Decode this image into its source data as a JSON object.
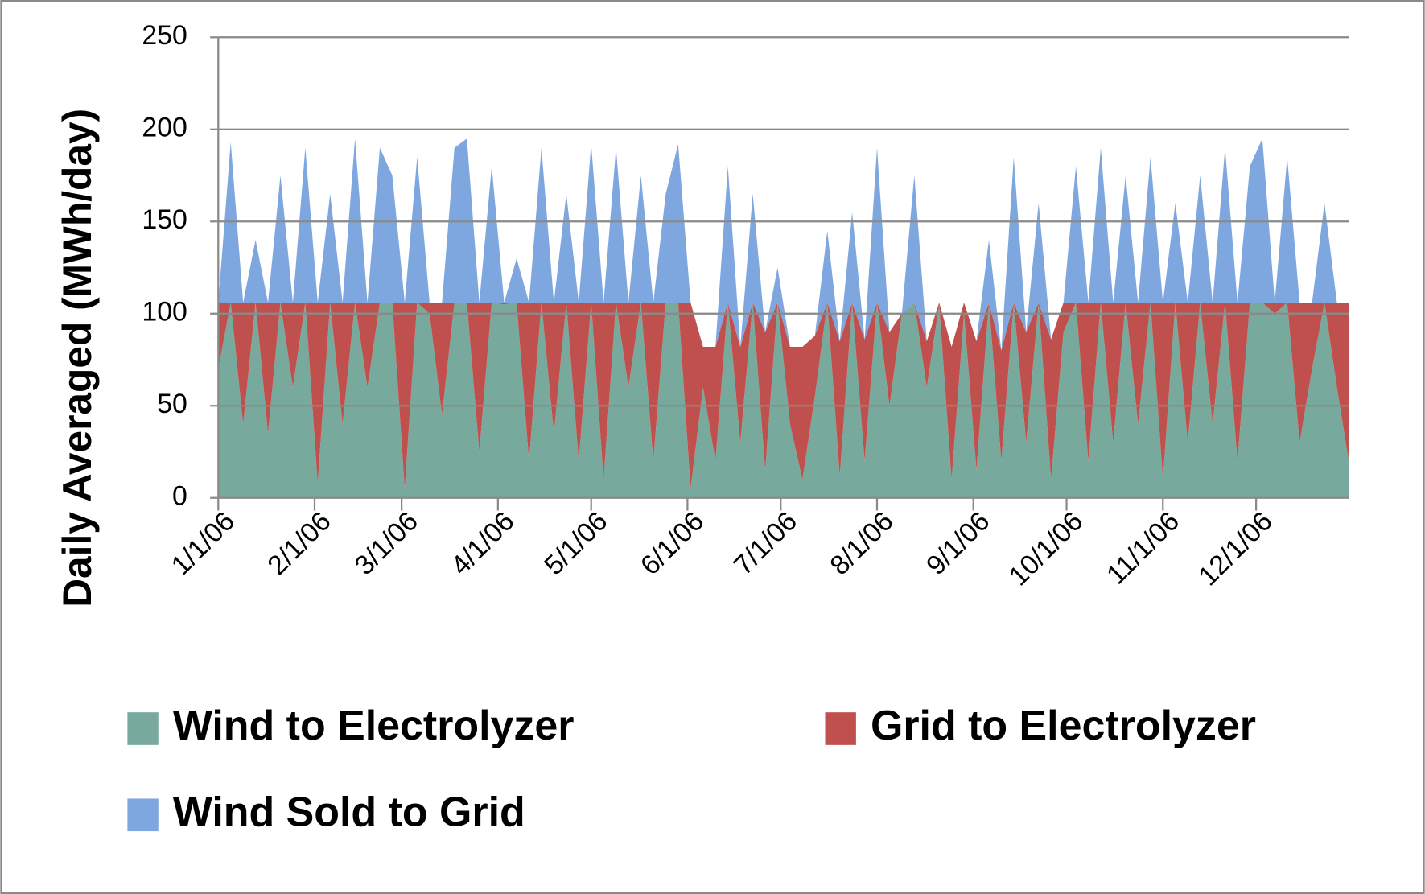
{
  "chart_data": {
    "type": "stacked_area",
    "y_label": "Daily Averaged (MWh/day)",
    "x": [
      "1/1/06",
      "1/5/06",
      "1/9/06",
      "1/13/06",
      "1/17/06",
      "1/21/06",
      "1/25/06",
      "1/29/06",
      "2/2/06",
      "2/6/06",
      "2/10/06",
      "2/14/06",
      "2/18/06",
      "2/22/06",
      "2/26/06",
      "3/2/06",
      "3/6/06",
      "3/10/06",
      "3/14/06",
      "3/18/06",
      "3/22/06",
      "3/26/06",
      "3/30/06",
      "4/3/06",
      "4/7/06",
      "4/11/06",
      "4/15/06",
      "4/19/06",
      "4/23/06",
      "4/27/06",
      "5/1/06",
      "5/5/06",
      "5/9/06",
      "5/13/06",
      "5/17/06",
      "5/21/06",
      "5/25/06",
      "5/29/06",
      "6/2/06",
      "6/6/06",
      "6/10/06",
      "6/14/06",
      "6/18/06",
      "6/22/06",
      "6/26/06",
      "6/30/06",
      "7/4/06",
      "7/8/06",
      "7/12/06",
      "7/16/06",
      "7/20/06",
      "7/24/06",
      "7/28/06",
      "8/1/06",
      "8/5/06",
      "8/9/06",
      "8/13/06",
      "8/17/06",
      "8/21/06",
      "8/25/06",
      "8/29/06",
      "9/2/06",
      "9/6/06",
      "9/10/06",
      "9/14/06",
      "9/18/06",
      "9/22/06",
      "9/26/06",
      "9/30/06",
      "10/4/06",
      "10/8/06",
      "10/12/06",
      "10/16/06",
      "10/20/06",
      "10/24/06",
      "10/28/06",
      "11/1/06",
      "11/5/06",
      "11/9/06",
      "11/13/06",
      "11/17/06",
      "11/21/06",
      "11/25/06",
      "11/29/06",
      "12/3/06",
      "12/7/06",
      "12/11/06",
      "12/15/06",
      "12/19/06",
      "12/23/06",
      "12/27/06",
      "12/31/06"
    ],
    "series": [
      {
        "name": "Wind to Electrolyzer",
        "color": "#78a99d",
        "values": [
          70,
          106,
          40,
          106,
          35,
          106,
          60,
          106,
          8,
          106,
          40,
          106,
          60,
          106,
          106,
          5,
          106,
          100,
          45,
          106,
          106,
          25,
          106,
          105,
          106,
          20,
          106,
          35,
          106,
          20,
          106,
          10,
          106,
          60,
          106,
          20,
          106,
          106,
          5,
          60,
          20,
          106,
          30,
          106,
          15,
          106,
          40,
          10,
          55,
          106,
          12,
          106,
          20,
          106,
          50,
          100,
          106,
          60,
          105,
          10,
          100,
          15,
          106,
          20,
          106,
          30,
          106,
          10,
          90,
          106,
          20,
          106,
          30,
          106,
          40,
          106,
          10,
          106,
          30,
          106,
          40,
          106,
          20,
          106,
          106,
          100,
          106,
          30,
          70,
          106,
          60,
          18
        ]
      },
      {
        "name": "Grid to Electrolyzer",
        "color": "#c0504d",
        "values": [
          36,
          0,
          66,
          0,
          71,
          0,
          46,
          0,
          98,
          0,
          66,
          0,
          46,
          0,
          0,
          101,
          0,
          6,
          61,
          0,
          0,
          81,
          0,
          1,
          0,
          86,
          0,
          71,
          0,
          86,
          0,
          96,
          0,
          46,
          0,
          86,
          0,
          0,
          101,
          22,
          62,
          0,
          52,
          0,
          75,
          0,
          42,
          72,
          33,
          0,
          73,
          0,
          66,
          0,
          40,
          0,
          0,
          25,
          1,
          72,
          6,
          70,
          0,
          60,
          0,
          60,
          0,
          76,
          16,
          0,
          86,
          0,
          76,
          0,
          66,
          0,
          96,
          0,
          76,
          0,
          66,
          0,
          86,
          0,
          0,
          6,
          0,
          76,
          36,
          0,
          46,
          88
        ]
      },
      {
        "name": "Wind Sold to Grid",
        "color": "#7ea6df",
        "values": [
          0,
          87,
          0,
          34,
          0,
          69,
          0,
          84,
          0,
          59,
          0,
          89,
          0,
          84,
          69,
          0,
          79,
          0,
          0,
          84,
          89,
          0,
          74,
          0,
          24,
          0,
          84,
          0,
          59,
          0,
          86,
          0,
          84,
          0,
          69,
          0,
          59,
          86,
          0,
          0,
          0,
          74,
          0,
          59,
          0,
          19,
          0,
          0,
          0,
          39,
          0,
          49,
          0,
          84,
          0,
          0,
          69,
          0,
          0,
          0,
          0,
          0,
          34,
          0,
          79,
          0,
          54,
          0,
          0,
          74,
          0,
          84,
          0,
          69,
          0,
          79,
          0,
          54,
          0,
          69,
          0,
          84,
          0,
          74,
          89,
          0,
          79,
          0,
          0,
          54,
          0,
          0
        ]
      }
    ],
    "xlim": [
      "1/1/06",
      "12/31/06"
    ],
    "xticks": [
      "1/1/06",
      "2/1/06",
      "3/1/06",
      "4/1/06",
      "5/1/06",
      "6/1/06",
      "7/1/06",
      "8/1/06",
      "9/1/06",
      "10/1/06",
      "11/1/06",
      "12/1/06"
    ],
    "ylim": [
      0,
      250
    ],
    "yticks": [
      0,
      50,
      100,
      150,
      200,
      250
    ],
    "grid": true,
    "legend": "bottom"
  }
}
